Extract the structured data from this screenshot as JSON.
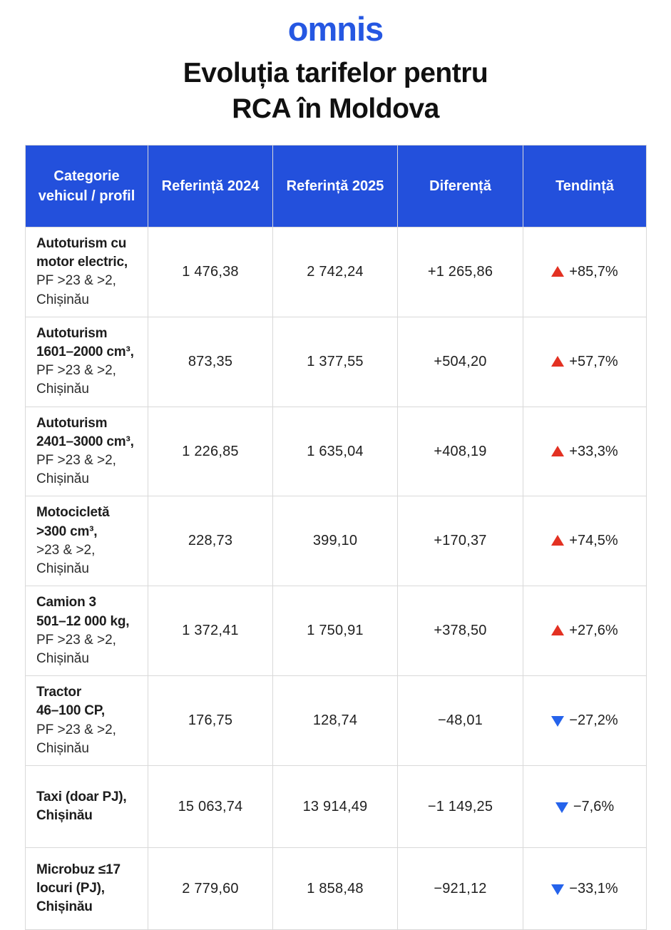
{
  "brand": {
    "logo_text": "omnis"
  },
  "title": {
    "line1": "Evoluția tarifelor pentru",
    "line2": "RCA în Moldova"
  },
  "colors": {
    "logo_blue": "#2557E2",
    "header_blue": "#2350DC",
    "trend_up_red": "#E33122",
    "trend_down_blue": "#2563EB",
    "grid_gray": "#d9d9d9"
  },
  "table": {
    "headers": [
      "Categorie vehicul / profil",
      "Referință 2024",
      "Referință 2025",
      "Diferență",
      "Tendință"
    ],
    "rows": [
      {
        "category": [
          {
            "text": "Autoturism cu",
            "bold": true
          },
          {
            "text": "motor electric,",
            "bold": true
          },
          {
            "text": "PF >23 & >2,",
            "bold": false
          },
          {
            "text": "Chișinău",
            "bold": false
          }
        ],
        "ref2024": "1 476,38",
        "ref2025": "2 742,24",
        "diff": "+1 265,86",
        "trend": {
          "dir": "up",
          "value": "+85,7%"
        }
      },
      {
        "category": [
          {
            "text": "Autoturism",
            "bold": true
          },
          {
            "text": "1601–2000 cm³,",
            "bold": true
          },
          {
            "text": "PF >23 & >2,",
            "bold": false
          },
          {
            "text": "Chișinău",
            "bold": false
          }
        ],
        "ref2024": "873,35",
        "ref2025": "1 377,55",
        "diff": "+504,20",
        "trend": {
          "dir": "up",
          "value": "+57,7%"
        }
      },
      {
        "category": [
          {
            "text": "Autoturism",
            "bold": true
          },
          {
            "text": "2401–3000 cm³,",
            "bold": true
          },
          {
            "text": "PF >23 & >2,",
            "bold": false
          },
          {
            "text": "Chișinău",
            "bold": false
          }
        ],
        "ref2024": "1 226,85",
        "ref2025": "1 635,04",
        "diff": "+408,19",
        "trend": {
          "dir": "up",
          "value": "+33,3%"
        }
      },
      {
        "category": [
          {
            "text": "Motocicletă",
            "bold": true
          },
          {
            "text": ">300 cm³,",
            "bold": true
          },
          {
            "text": ">23 & >2,",
            "bold": false
          },
          {
            "text": "Chișinău",
            "bold": false
          }
        ],
        "ref2024": "228,73",
        "ref2025": "399,10",
        "diff": "+170,37",
        "trend": {
          "dir": "up",
          "value": "+74,5%"
        }
      },
      {
        "category": [
          {
            "text": "Camion 3",
            "bold": true
          },
          {
            "text": "501–12 000 kg,",
            "bold": true
          },
          {
            "text": "PF >23 & >2,",
            "bold": false
          },
          {
            "text": "Chișinău",
            "bold": false
          }
        ],
        "ref2024": "1 372,41",
        "ref2025": "1 750,91",
        "diff": "+378,50",
        "trend": {
          "dir": "up",
          "value": "+27,6%"
        }
      },
      {
        "category": [
          {
            "text": "Tractor",
            "bold": true
          },
          {
            "text": "46–100 CP,",
            "bold": true
          },
          {
            "text": "PF >23 & >2,",
            "bold": false
          },
          {
            "text": "Chișinău",
            "bold": false
          }
        ],
        "ref2024": "176,75",
        "ref2025": "128,74",
        "diff": "−48,01",
        "trend": {
          "dir": "down",
          "value": "−27,2%"
        }
      },
      {
        "category": [
          {
            "text": "Taxi (doar PJ),",
            "bold": true
          },
          {
            "text": "Chișinău",
            "bold": true
          }
        ],
        "ref2024": "15 063,74",
        "ref2025": "13 914,49",
        "diff": "−1 149,25",
        "trend": {
          "dir": "down",
          "value": "−7,6%"
        }
      },
      {
        "category": [
          {
            "text": "Microbuz ≤17",
            "bold": true
          },
          {
            "text": "locuri (PJ),",
            "bold": true
          },
          {
            "text": "Chișinău",
            "bold": true
          }
        ],
        "ref2024": "2 779,60",
        "ref2025": "1 858,48",
        "diff": "−921,12",
        "trend": {
          "dir": "down",
          "value": "−33,1%"
        }
      }
    ]
  }
}
